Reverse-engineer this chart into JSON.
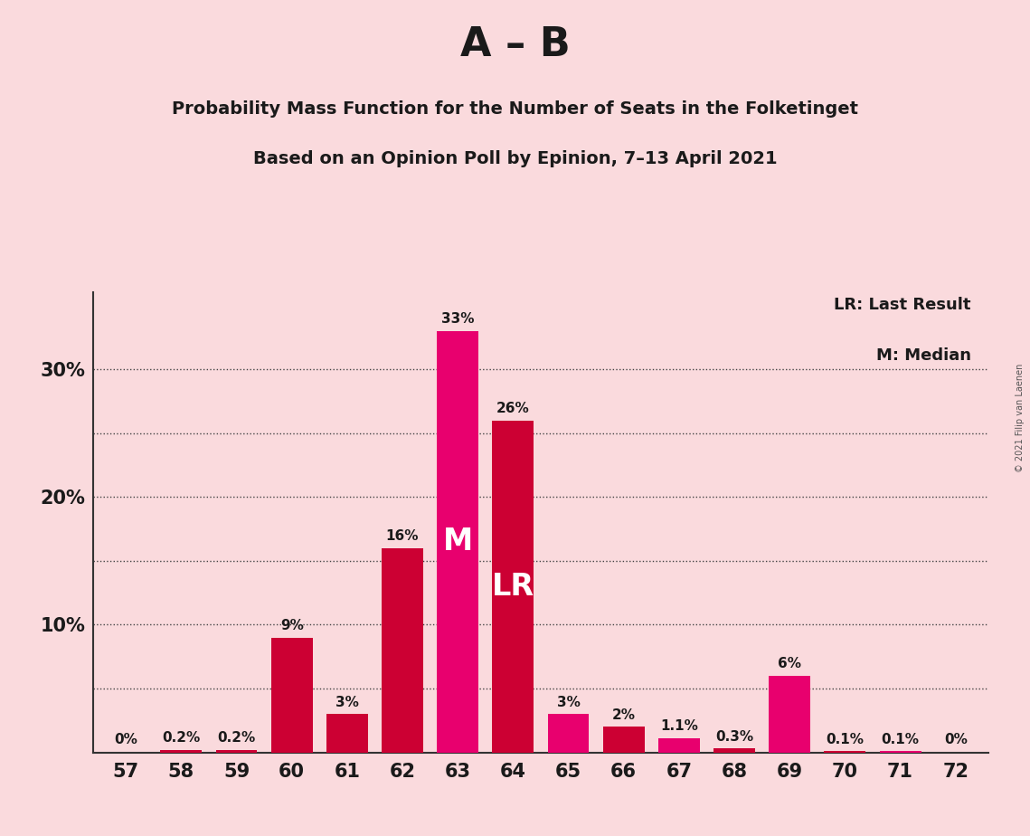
{
  "title_main": "A – B",
  "title_sub1": "Probability Mass Function for the Number of Seats in the Folketinget",
  "title_sub2": "Based on an Opinion Poll by Epinion, 7–13 April 2021",
  "copyright": "© 2021 Filip van Laenen",
  "seats": [
    57,
    58,
    59,
    60,
    61,
    62,
    63,
    64,
    65,
    66,
    67,
    68,
    69,
    70,
    71,
    72
  ],
  "values": [
    0.0,
    0.2,
    0.2,
    9.0,
    3.0,
    16.0,
    33.0,
    26.0,
    3.0,
    2.0,
    1.1,
    0.3,
    6.0,
    0.1,
    0.1,
    0.0
  ],
  "labels": [
    "0%",
    "0.2%",
    "0.2%",
    "9%",
    "3%",
    "16%",
    "33%",
    "26%",
    "3%",
    "2%",
    "1.1%",
    "0.3%",
    "6%",
    "0.1%",
    "0.1%",
    "0%"
  ],
  "color_map": {
    "57": "#CC0033",
    "58": "#CC0033",
    "59": "#CC0033",
    "60": "#CC0033",
    "61": "#CC0033",
    "62": "#CC0033",
    "63": "#E8006E",
    "64": "#CC0033",
    "65": "#E8006E",
    "66": "#CC0033",
    "67": "#E8006E",
    "68": "#CC0033",
    "69": "#E8006E",
    "70": "#CC0033",
    "71": "#E8006E",
    "72": "#CC0033"
  },
  "median_seat": 63,
  "lr_seat": 64,
  "background_color": "#FADADD",
  "grid_lines": [
    5,
    10,
    15,
    20,
    25,
    30
  ],
  "ylim": [
    0,
    36
  ],
  "ytick_positions": [
    10,
    20,
    30
  ],
  "ytick_labels": [
    "10%",
    "20%",
    "30%"
  ],
  "legend_text1": "LR: Last Result",
  "legend_text2": "M: Median",
  "bar_width": 0.75
}
